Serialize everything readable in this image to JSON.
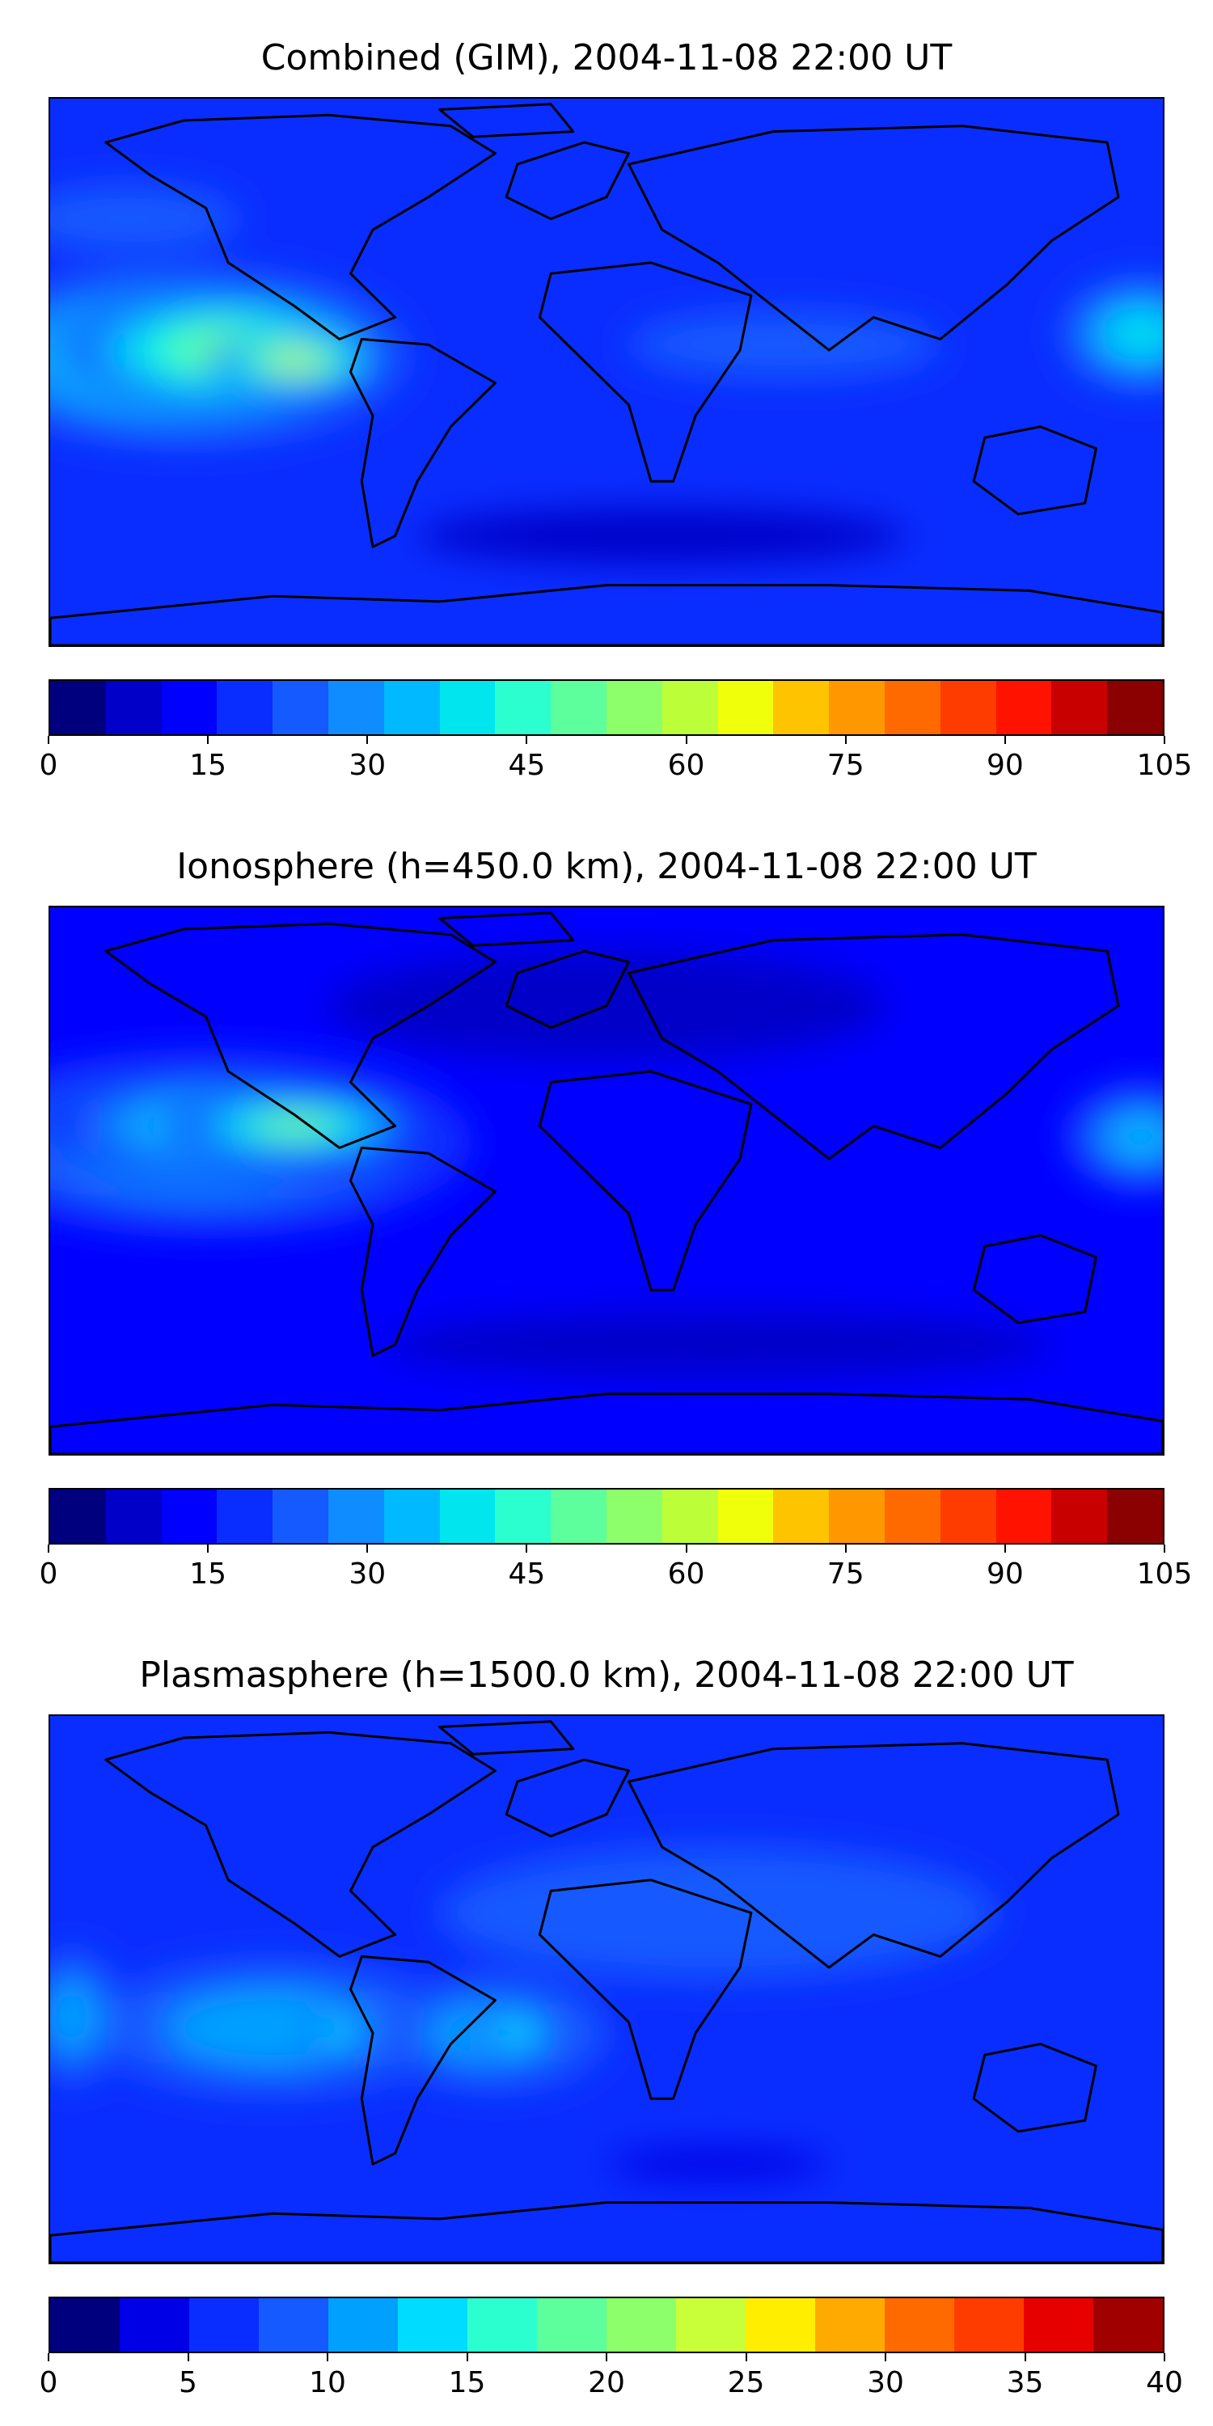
{
  "chart_data": [
    {
      "type": "heatmap",
      "title": "Combined (GIM), 2004-11-08 22:00 UT",
      "colorbar": {
        "min": 0,
        "max": 105,
        "step": 5,
        "ticks": [
          "0",
          "15",
          "30",
          "45",
          "60",
          "75",
          "90",
          "105"
        ],
        "colors": [
          "#00007f",
          "#0000c8",
          "#0000ff",
          "#0a2dff",
          "#145aff",
          "#0f8cff",
          "#00b9ff",
          "#00e5ee",
          "#2bffd0",
          "#5cff9c",
          "#8cff6a",
          "#bcff39",
          "#f0ff0a",
          "#ffc400",
          "#ff9800",
          "#ff6a00",
          "#ff3c00",
          "#ff1200",
          "#c80000",
          "#8b0000"
        ]
      },
      "blobs": [
        {
          "cx": 0.12,
          "cy": 0.47,
          "rx": 0.2,
          "ry": 0.16,
          "level": 8
        },
        {
          "cx": 0.16,
          "cy": 0.46,
          "rx": 0.15,
          "ry": 0.11,
          "level": 10
        },
        {
          "cx": 0.22,
          "cy": 0.48,
          "rx": 0.08,
          "ry": 0.05,
          "level": 12
        },
        {
          "cx": 0.98,
          "cy": 0.43,
          "rx": 0.07,
          "ry": 0.1,
          "level": 7
        },
        {
          "cx": 0.66,
          "cy": 0.45,
          "rx": 0.14,
          "ry": 0.06,
          "level": 4
        },
        {
          "cx": 0.07,
          "cy": 0.22,
          "rx": 0.1,
          "ry": 0.06,
          "level": 4
        },
        {
          "cx": 0.55,
          "cy": 0.8,
          "rx": 0.22,
          "ry": 0.05,
          "level": 1
        }
      ],
      "base_level": 3
    },
    {
      "type": "heatmap",
      "title": "Ionosphere  (h=450.0 km), 2004-11-08 22:00 UT",
      "colorbar": {
        "min": 0,
        "max": 105,
        "step": 5,
        "ticks": [
          "0",
          "15",
          "30",
          "45",
          "60",
          "75",
          "90",
          "105"
        ],
        "colors": [
          "#00007f",
          "#0000c8",
          "#0000ff",
          "#0a2dff",
          "#145aff",
          "#0f8cff",
          "#00b9ff",
          "#00e5ee",
          "#2bffd0",
          "#5cff9c",
          "#8cff6a",
          "#bcff39",
          "#f0ff0a",
          "#ffc400",
          "#ff9800",
          "#ff6a00",
          "#ff3c00",
          "#ff1200",
          "#c80000",
          "#8b0000"
        ]
      },
      "blobs": [
        {
          "cx": 0.14,
          "cy": 0.43,
          "rx": 0.24,
          "ry": 0.17,
          "level": 6
        },
        {
          "cx": 0.17,
          "cy": 0.4,
          "rx": 0.18,
          "ry": 0.1,
          "level": 8
        },
        {
          "cx": 0.22,
          "cy": 0.4,
          "rx": 0.12,
          "ry": 0.06,
          "level": 10
        },
        {
          "cx": 0.98,
          "cy": 0.42,
          "rx": 0.07,
          "ry": 0.1,
          "level": 6
        },
        {
          "cx": 0.5,
          "cy": 0.18,
          "rx": 0.25,
          "ry": 0.1,
          "level": 1
        },
        {
          "cx": 0.6,
          "cy": 0.8,
          "rx": 0.3,
          "ry": 0.06,
          "level": 1
        }
      ],
      "base_level": 2
    },
    {
      "type": "heatmap",
      "title": "Plasmasphere (h=1500.0 km), 2004-11-08 22:00 UT",
      "colorbar": {
        "min": 0,
        "max": 40,
        "step": 2.5,
        "ticks": [
          "0",
          "5",
          "10",
          "15",
          "20",
          "25",
          "30",
          "35",
          "40"
        ],
        "colors": [
          "#00007f",
          "#0000e6",
          "#0a2dff",
          "#145aff",
          "#00a0ff",
          "#00dcff",
          "#2bffd0",
          "#5cff9c",
          "#8cff6a",
          "#c8ff39",
          "#ffee00",
          "#ffaa00",
          "#ff6a00",
          "#ff3c00",
          "#e60000",
          "#a00000"
        ]
      },
      "blobs": [
        {
          "cx": 0.2,
          "cy": 0.57,
          "rx": 0.16,
          "ry": 0.12,
          "level": 4
        },
        {
          "cx": 0.4,
          "cy": 0.58,
          "rx": 0.1,
          "ry": 0.1,
          "level": 4
        },
        {
          "cx": 0.26,
          "cy": 0.58,
          "rx": 0.03,
          "ry": 0.05,
          "level": 5
        },
        {
          "cx": 0.42,
          "cy": 0.58,
          "rx": 0.04,
          "ry": 0.05,
          "level": 5
        },
        {
          "cx": 0.6,
          "cy": 0.36,
          "rx": 0.25,
          "ry": 0.12,
          "level": 3
        },
        {
          "cx": 0.02,
          "cy": 0.55,
          "rx": 0.04,
          "ry": 0.12,
          "level": 4
        },
        {
          "cx": 0.6,
          "cy": 0.82,
          "rx": 0.1,
          "ry": 0.03,
          "level": 1
        }
      ],
      "base_level": 2
    }
  ]
}
